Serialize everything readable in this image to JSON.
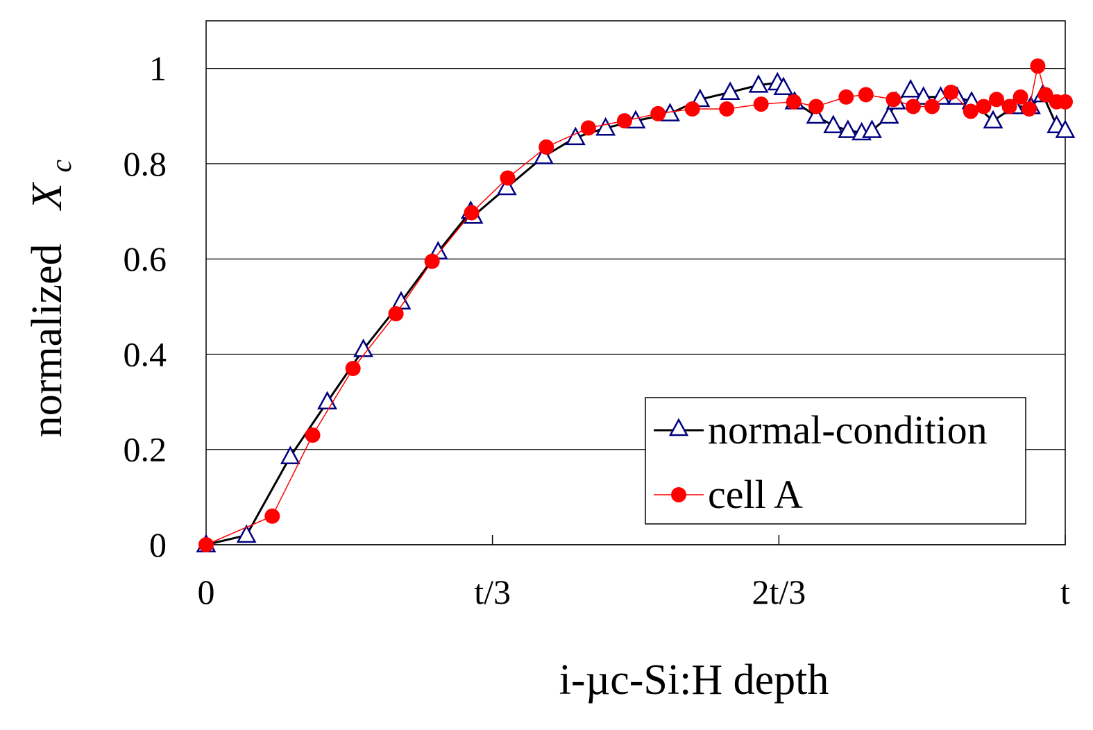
{
  "chart_data": {
    "type": "line",
    "title": "",
    "xlabel": "i-µc-Si:H depth",
    "ylabel_main": "normalized",
    "ylabel_symbol": "X",
    "ylabel_subscript": "c",
    "x_range": [
      0,
      1
    ],
    "ylim": [
      0,
      1.1
    ],
    "grid": "horizontal",
    "x_ticks": [
      {
        "value": 0,
        "label": "0"
      },
      {
        "value": 0.3333,
        "label": "t/3"
      },
      {
        "value": 0.6667,
        "label": "2t/3"
      },
      {
        "value": 1,
        "label": "t"
      }
    ],
    "y_ticks": [
      {
        "value": 0,
        "label": "0"
      },
      {
        "value": 0.2,
        "label": "0.2"
      },
      {
        "value": 0.4,
        "label": "0.4"
      },
      {
        "value": 0.6,
        "label": "0.6"
      },
      {
        "value": 0.8,
        "label": "0.8"
      },
      {
        "value": 1,
        "label": "1"
      }
    ],
    "legend_position": "bottom-right",
    "series": [
      {
        "name": "normal-condition",
        "color": "#000000",
        "marker_color": "#000080",
        "marker": "open-triangle",
        "x": [
          0,
          0.047,
          0.098,
          0.141,
          0.183,
          0.227,
          0.27,
          0.308,
          0.311,
          0.35,
          0.393,
          0.43,
          0.465,
          0.5,
          0.54,
          0.575,
          0.61,
          0.643,
          0.665,
          0.672,
          0.685,
          0.71,
          0.73,
          0.747,
          0.763,
          0.775,
          0.795,
          0.803,
          0.82,
          0.835,
          0.855,
          0.874,
          0.891,
          0.916,
          0.941,
          0.96,
          0.974,
          0.99,
          1.0
        ],
        "y": [
          0,
          0.02,
          0.185,
          0.3,
          0.41,
          0.51,
          0.615,
          0.7,
          0.69,
          0.75,
          0.815,
          0.855,
          0.875,
          0.89,
          0.905,
          0.935,
          0.95,
          0.965,
          0.97,
          0.96,
          0.93,
          0.9,
          0.88,
          0.87,
          0.865,
          0.87,
          0.9,
          0.93,
          0.955,
          0.94,
          0.94,
          0.94,
          0.93,
          0.89,
          0.92,
          0.92,
          0.945,
          0.88,
          0.87
        ]
      },
      {
        "name": "cell A",
        "color": "#ff0000",
        "marker_color": "#ff0000",
        "marker": "filled-circle",
        "x": [
          0,
          0.077,
          0.124,
          0.171,
          0.221,
          0.263,
          0.309,
          0.351,
          0.396,
          0.445,
          0.487,
          0.526,
          0.566,
          0.606,
          0.646,
          0.684,
          0.71,
          0.745,
          0.768,
          0.8,
          0.823,
          0.845,
          0.867,
          0.89,
          0.905,
          0.92,
          0.935,
          0.948,
          0.958,
          0.968,
          0.977,
          0.99,
          1.0
        ],
        "y": [
          0,
          0.06,
          0.23,
          0.37,
          0.485,
          0.595,
          0.697,
          0.77,
          0.835,
          0.875,
          0.89,
          0.905,
          0.915,
          0.915,
          0.925,
          0.93,
          0.92,
          0.94,
          0.945,
          0.935,
          0.92,
          0.92,
          0.95,
          0.91,
          0.92,
          0.935,
          0.92,
          0.94,
          0.915,
          1.005,
          0.945,
          0.93,
          0.93
        ]
      }
    ]
  }
}
